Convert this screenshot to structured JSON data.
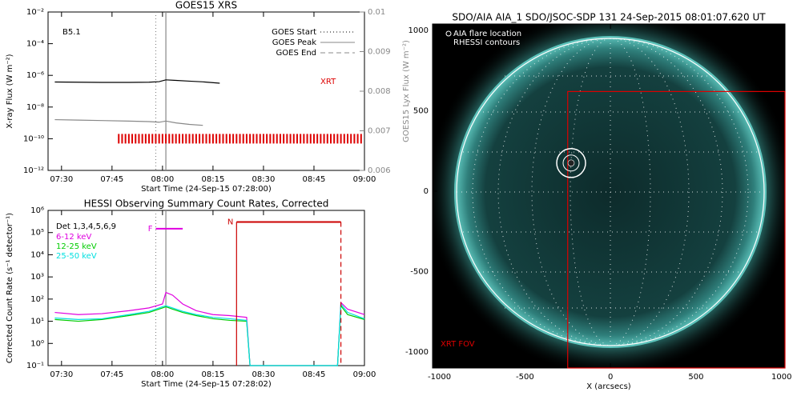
{
  "chart_data": [
    {
      "type": "line",
      "title": "GOES15 XRS",
      "xlabel": "Start Time (24-Sep-15 07:28:00)",
      "ylabel": "X-ray Flux (W m⁻²)",
      "y2label": "GOES15 Lyx Flux (W m⁻²)",
      "log_y": true,
      "xlim": [
        "07:26",
        "09:00"
      ],
      "xticks": [
        "07:30",
        "07:45",
        "08:00",
        "08:15",
        "08:30",
        "08:45",
        "09:00"
      ],
      "ylim": [
        1e-12,
        0.01
      ],
      "yticks": [
        {
          "value": 1e-12,
          "label": "10⁻¹²"
        },
        {
          "value": 1e-10,
          "label": "10⁻¹⁰"
        },
        {
          "value": 1e-08,
          "label": "10⁻⁸"
        },
        {
          "value": 1e-06,
          "label": "10⁻⁶"
        },
        {
          "value": 0.0001,
          "label": "10⁻⁴"
        },
        {
          "value": 0.01,
          "label": "10⁻²"
        }
      ],
      "y2lim": [
        0.006,
        0.01
      ],
      "y2ticks": [
        0.006,
        0.007,
        0.008,
        0.009,
        0.01
      ],
      "flare_class": "B5.1",
      "xrt_label": "XRT",
      "legend": [
        "GOES Start",
        "GOES Peak",
        "GOES End"
      ],
      "goes_start": "07:58",
      "goes_peak": "08:01",
      "x": [
        "07:28",
        "07:35",
        "07:42",
        "07:50",
        "07:56",
        "07:59",
        "08:01",
        "08:04",
        "08:08",
        "08:12",
        "08:17"
      ],
      "series": [
        {
          "color": "#000000",
          "values": [
            3.8e-07,
            3.7e-07,
            3.6e-07,
            3.6e-07,
            3.7e-07,
            4e-07,
            5.2e-07,
            4.8e-07,
            4.3e-07,
            3.9e-07,
            3.2e-07
          ]
        },
        {
          "color": "#888888",
          "values": [
            1.6e-09,
            1.5e-09,
            1.4e-09,
            1.3e-09,
            1.2e-09,
            1.1e-09,
            1.3e-09,
            1e-09,
            8e-10,
            7e-10,
            null
          ]
        }
      ],
      "xrt_obs": [
        "07:47",
        "07:48",
        "07:49",
        "07:50",
        "07:51",
        "07:52",
        "07:53",
        "07:54",
        "07:55",
        "07:56",
        "07:57",
        "07:58",
        "07:59",
        "08:00",
        "08:01",
        "08:02",
        "08:03",
        "08:04",
        "08:05",
        "08:06",
        "08:07",
        "08:08",
        "08:09",
        "08:10",
        "08:11",
        "08:12",
        "08:13",
        "08:14",
        "08:15",
        "08:16",
        "08:17",
        "08:18",
        "08:19",
        "08:20",
        "08:21",
        "08:22",
        "08:23",
        "08:24",
        "08:25",
        "08:26",
        "08:27",
        "08:28",
        "08:29",
        "08:30",
        "08:31",
        "08:32",
        "08:33",
        "08:34",
        "08:35",
        "08:36",
        "08:37",
        "08:38",
        "08:39",
        "08:40",
        "08:41",
        "08:42",
        "08:43",
        "08:44",
        "08:45",
        "08:46",
        "08:47",
        "08:48",
        "08:49",
        "08:50",
        "08:51",
        "08:52",
        "08:53",
        "08:54",
        "08:55",
        "08:56",
        "08:57",
        "08:58",
        "08:59"
      ],
      "xrt_level": 1e-10
    },
    {
      "type": "line",
      "title": "HESSI Observing Summary Count Rates, Corrected",
      "xlabel": "Start Time (24-Sep-15 07:28:02)",
      "ylabel": "Corrected Count Rate (s⁻¹ detector⁻¹)",
      "log_y": true,
      "xlim": [
        "07:26",
        "09:00"
      ],
      "xticks": [
        "07:30",
        "07:45",
        "08:00",
        "08:15",
        "08:30",
        "08:45",
        "09:00"
      ],
      "ylim": [
        0.1,
        1000000.0
      ],
      "yticks": [
        {
          "value": 0.1,
          "label": "10⁻¹"
        },
        {
          "value": 1,
          "label": "10⁰"
        },
        {
          "value": 10,
          "label": "10¹"
        },
        {
          "value": 100,
          "label": "10²"
        },
        {
          "value": 1000,
          "label": "10³"
        },
        {
          "value": 10000,
          "label": "10⁴"
        },
        {
          "value": 100000,
          "label": "10⁵"
        },
        {
          "value": 1000000,
          "label": "10⁶"
        }
      ],
      "detectors": "Det 1,3,4,5,6,9",
      "goes_start": "07:58",
      "goes_peak": "08:01",
      "flare_flag": {
        "label": "F",
        "x": [
          "07:58",
          "08:06"
        ],
        "value": 150000
      },
      "night_flag": {
        "label": "N",
        "x": [
          "08:22",
          "08:53"
        ],
        "value": 300000
      },
      "x": [
        "07:28",
        "07:35",
        "07:42",
        "07:50",
        "07:56",
        "08:00",
        "08:01",
        "08:03",
        "08:06",
        "08:10",
        "08:15",
        "08:20",
        "08:25",
        "08:26",
        "08:40",
        "08:52",
        "08:53",
        "08:55",
        "09:00"
      ],
      "series": [
        {
          "name": "6-12 keV",
          "color": "#e000e0",
          "values": [
            25,
            20,
            22,
            30,
            40,
            60,
            200,
            150,
            60,
            30,
            20,
            18,
            15,
            0.1,
            0.1,
            0.1,
            70,
            35,
            20
          ]
        },
        {
          "name": "12-25 keV",
          "color": "#00cc00",
          "values": [
            12,
            10,
            12,
            18,
            25,
            40,
            45,
            35,
            25,
            18,
            13,
            11,
            10,
            0.1,
            0.1,
            0.1,
            50,
            20,
            12
          ]
        },
        {
          "name": "25-50 keV",
          "color": "#00e0e0",
          "values": [
            14,
            12,
            13,
            20,
            28,
            45,
            50,
            40,
            28,
            20,
            15,
            13,
            11,
            0.1,
            0.1,
            0.1,
            60,
            25,
            13
          ]
        }
      ]
    },
    {
      "type": "image",
      "title": "SDO/AIA AIA_1 SDO/JSOC-SDP 131 24-Sep-2015 08:01:07.620 UT",
      "xlabel": "X (arcsecs)",
      "xlim": [
        -1040,
        1020
      ],
      "ylim": [
        -1100,
        1040
      ],
      "xticks": [
        -1000,
        -500,
        0,
        500,
        1000
      ],
      "yticks": [
        -1000,
        -500,
        0,
        500,
        1000
      ],
      "legend": [
        "AIA flare location",
        "RHESSI contours"
      ],
      "fov_label": "XRT FOV",
      "flare_location": {
        "x": -230,
        "y": 175
      },
      "xrt_fov": {
        "x": [
          -250,
          1020
        ],
        "y": [
          -1100,
          620
        ]
      }
    }
  ]
}
